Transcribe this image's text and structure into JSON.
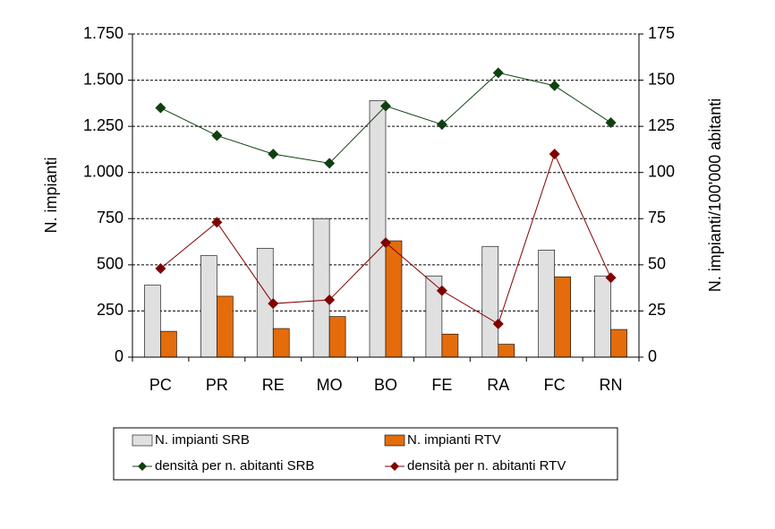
{
  "chart_data": {
    "type": "bar",
    "categories": [
      "PC",
      "PR",
      "RE",
      "MO",
      "BO",
      "FE",
      "RA",
      "FC",
      "RN"
    ],
    "y_label": "N. impianti",
    "y2_label": "N. impianti/100'000 abitanti",
    "ylim": [
      0,
      1750
    ],
    "yticks": [
      0,
      250,
      500,
      750,
      {
        "value": 1000,
        "label": "1.000"
      },
      {
        "value": 1250,
        "label": "1.250"
      },
      {
        "value": 1500,
        "label": "1.500"
      },
      {
        "value": 1750,
        "label": "1.750"
      }
    ],
    "y2lim": [
      0,
      175
    ],
    "y2ticks": [
      0,
      25,
      50,
      75,
      100,
      125,
      150,
      175
    ],
    "grid": true,
    "legend": "bottom",
    "series": [
      {
        "name": "N. impianti SRB",
        "type": "bar",
        "color": "#e0e0e0",
        "values": [
          390,
          550,
          590,
          750,
          1390,
          440,
          600,
          580,
          440
        ]
      },
      {
        "name": "N. impianti RTV",
        "type": "bar",
        "color": "#e46c0a",
        "values": [
          140,
          330,
          155,
          220,
          630,
          125,
          70,
          435,
          150
        ]
      },
      {
        "name": "densità per n. abitanti SRB",
        "type": "line",
        "axis": "y2",
        "color": "#0f4010",
        "values": [
          135,
          120,
          110,
          105,
          136,
          126,
          154,
          147,
          127
        ]
      },
      {
        "name": "densità per n. abitanti RTV",
        "type": "line",
        "axis": "y2",
        "color": "#7f0000",
        "values": [
          48,
          73,
          29,
          31,
          62,
          36,
          18,
          110,
          43
        ]
      }
    ]
  }
}
